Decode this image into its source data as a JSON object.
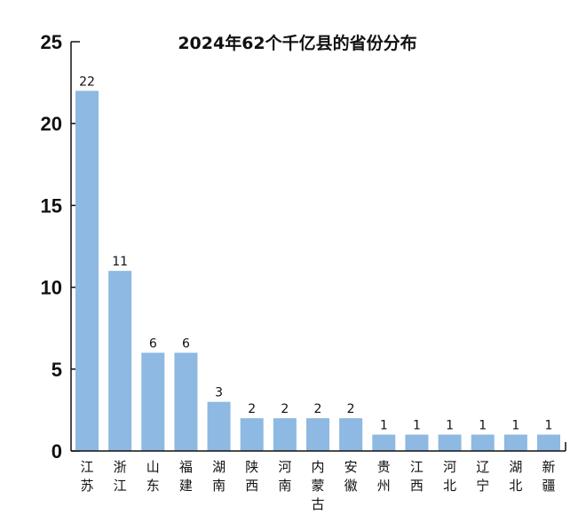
{
  "chart_data": {
    "type": "bar",
    "title": "2024年62个千亿县的省份分布",
    "xlabel": "",
    "ylabel": "",
    "ylim": [
      0,
      25
    ],
    "yticks": [
      0,
      5,
      10,
      15,
      20,
      25
    ],
    "categories": [
      "江苏",
      "浙江",
      "山东",
      "福建",
      "湖南",
      "陕西",
      "河南",
      "内蒙古",
      "安徽",
      "贵州",
      "江西",
      "河北",
      "辽宁",
      "湖北",
      "新疆"
    ],
    "values": [
      22,
      11,
      6,
      6,
      3,
      2,
      2,
      2,
      2,
      1,
      1,
      1,
      1,
      1,
      1
    ],
    "bar_color": "#8db9e2",
    "grid": false,
    "legend": "none"
  }
}
